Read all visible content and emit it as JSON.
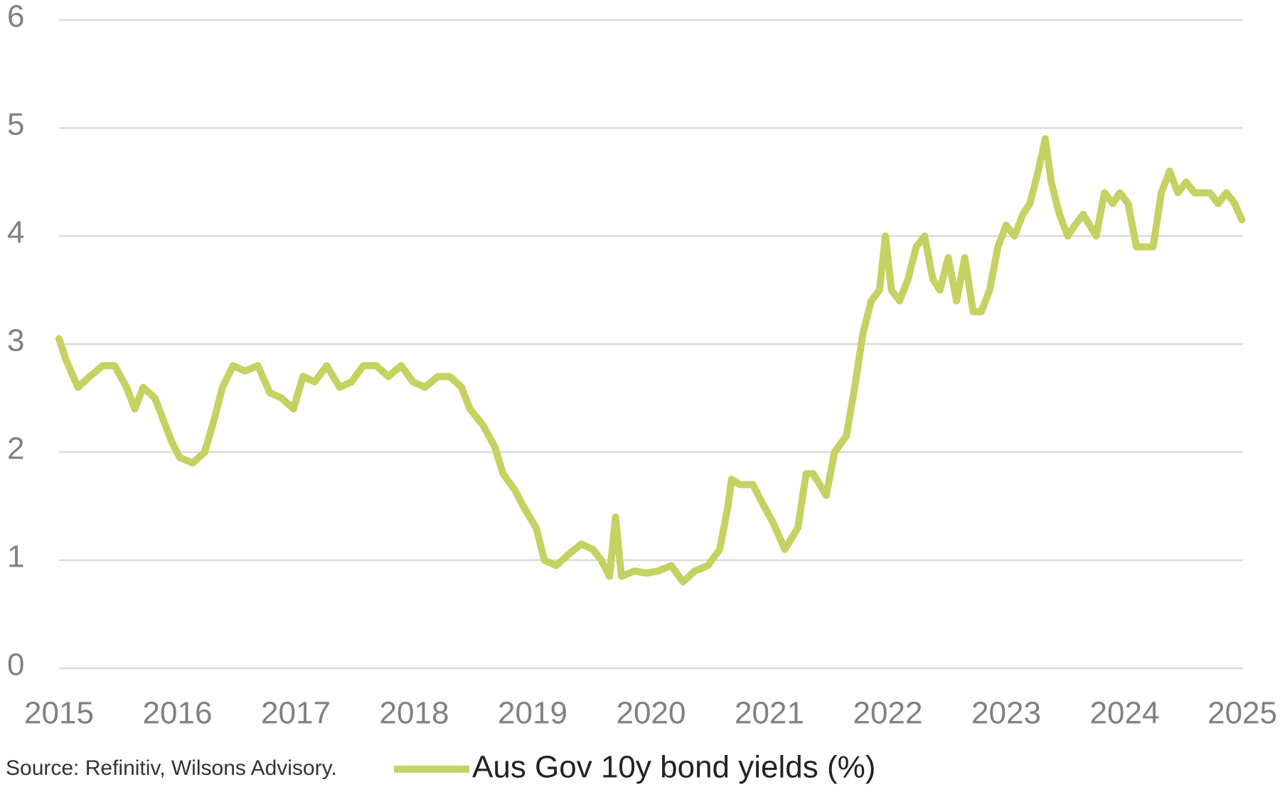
{
  "chart_data": {
    "type": "line",
    "source": "Source: Refinitiv, Wilsons Advisory.",
    "xlim": [
      2015,
      2025
    ],
    "xticks": [
      2015,
      2016,
      2017,
      2018,
      2019,
      2020,
      2021,
      2022,
      2023,
      2024,
      2025
    ],
    "ylim": [
      0,
      6
    ],
    "yticks": [
      0,
      1,
      2,
      3,
      4,
      5,
      6
    ],
    "grid": true,
    "legend": "bottom",
    "x": [
      2015.0,
      2015.06,
      2015.16,
      2015.26,
      2015.37,
      2015.47,
      2015.57,
      2015.64,
      2015.71,
      2015.81,
      2015.88,
      2015.95,
      2016.02,
      2016.13,
      2016.23,
      2016.31,
      2016.38,
      2016.47,
      2016.57,
      2016.68,
      2016.78,
      2016.88,
      2016.98,
      2017.06,
      2017.16,
      2017.26,
      2017.37,
      2017.47,
      2017.57,
      2017.68,
      2017.78,
      2017.89,
      2017.99,
      2018.09,
      2018.2,
      2018.3,
      2018.4,
      2018.47,
      2018.58,
      2018.68,
      2018.75,
      2018.85,
      2018.92,
      2019.03,
      2019.1,
      2019.2,
      2019.3,
      2019.41,
      2019.51,
      2019.58,
      2019.65,
      2019.7,
      2019.75,
      2019.86,
      2019.96,
      2020.06,
      2020.17,
      2020.27,
      2020.37,
      2020.48,
      2020.58,
      2020.65,
      2020.68,
      2020.75,
      2020.86,
      2020.93,
      2021.03,
      2021.13,
      2021.24,
      2021.31,
      2021.37,
      2021.48,
      2021.55,
      2021.65,
      2021.72,
      2021.79,
      2021.86,
      2021.93,
      2021.98,
      2022.03,
      2022.1,
      2022.17,
      2022.24,
      2022.31,
      2022.38,
      2022.44,
      2022.51,
      2022.58,
      2022.65,
      2022.72,
      2022.79,
      2022.86,
      2022.93,
      2023.0,
      2023.07,
      2023.14,
      2023.2,
      2023.27,
      2023.33,
      2023.38,
      2023.45,
      2023.52,
      2023.58,
      2023.65,
      2023.76,
      2023.83,
      2023.9,
      2023.96,
      2024.03,
      2024.1,
      2024.17,
      2024.24,
      2024.31,
      2024.38,
      2024.45,
      2024.52,
      2024.59,
      2024.65,
      2024.72,
      2024.79,
      2024.86,
      2024.93,
      2024.99
    ],
    "series": [
      {
        "name": "Aus Gov 10y bond yields (%)",
        "color": "#c5d160",
        "values": [
          3.05,
          2.85,
          2.6,
          2.7,
          2.8,
          2.8,
          2.6,
          2.4,
          2.6,
          2.5,
          2.3,
          2.1,
          1.95,
          1.9,
          2.0,
          2.3,
          2.6,
          2.8,
          2.75,
          2.8,
          2.55,
          2.5,
          2.4,
          2.7,
          2.65,
          2.8,
          2.6,
          2.65,
          2.8,
          2.8,
          2.7,
          2.8,
          2.65,
          2.6,
          2.7,
          2.7,
          2.6,
          2.4,
          2.25,
          2.05,
          1.8,
          1.65,
          1.5,
          1.3,
          1.0,
          0.95,
          1.05,
          1.15,
          1.1,
          1.0,
          0.85,
          1.4,
          0.85,
          0.9,
          0.88,
          0.9,
          0.95,
          0.8,
          0.9,
          0.95,
          1.1,
          1.5,
          1.75,
          1.7,
          1.7,
          1.55,
          1.35,
          1.1,
          1.3,
          1.8,
          1.8,
          1.6,
          2.0,
          2.15,
          2.6,
          3.1,
          3.4,
          3.5,
          4.0,
          3.5,
          3.4,
          3.6,
          3.9,
          4.0,
          3.6,
          3.5,
          3.8,
          3.4,
          3.8,
          3.3,
          3.3,
          3.5,
          3.9,
          4.1,
          4.0,
          4.2,
          4.3,
          4.6,
          4.9,
          4.5,
          4.2,
          4.0,
          4.1,
          4.2,
          4.0,
          4.4,
          4.3,
          4.4,
          4.3,
          3.9,
          3.9,
          3.9,
          4.4,
          4.6,
          4.4,
          4.5,
          4.4,
          4.4,
          4.4,
          4.3,
          4.4,
          4.3,
          4.15
        ]
      }
    ]
  }
}
